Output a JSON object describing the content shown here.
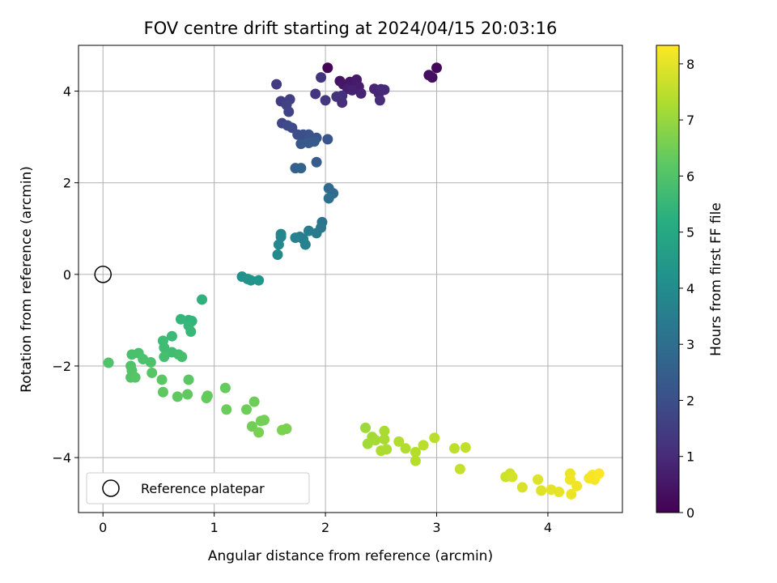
{
  "chart_data": {
    "type": "scatter",
    "title": "FOV centre drift starting at 2024/04/15 20:03:16",
    "xlabel": "Angular distance from reference (arcmin)",
    "ylabel": "Rotation from reference (arcmin)",
    "xlim": [
      -0.22,
      4.67
    ],
    "ylim": [
      -5.2,
      5.0
    ],
    "xticks": [
      0,
      1,
      2,
      3,
      4
    ],
    "yticks": [
      -4,
      -2,
      0,
      2,
      4
    ],
    "xtick_labels": [
      "0",
      "1",
      "2",
      "3",
      "4"
    ],
    "ytick_labels": [
      "−4",
      "−2",
      "0",
      "2",
      "4"
    ],
    "grid": true,
    "colorbar": {
      "label": "Hours from first FF file",
      "colormap": "viridis",
      "range": [
        0,
        8.33
      ],
      "ticks": [
        0,
        1,
        2,
        3,
        4,
        5,
        6,
        7,
        8
      ],
      "tick_labels": [
        "0",
        "1",
        "2",
        "3",
        "4",
        "5",
        "6",
        "7",
        "8"
      ]
    },
    "reference": {
      "name": "Reference platepar",
      "x": 0,
      "y": 0
    },
    "legend": {
      "placement": "lower-left",
      "entries": [
        "Reference platepar"
      ]
    },
    "points": [
      [
        2.02,
        4.51,
        0.1
      ],
      [
        3.0,
        4.51,
        0.2
      ],
      [
        2.93,
        4.35,
        0.3
      ],
      [
        2.96,
        4.3,
        0.35
      ],
      [
        2.13,
        4.22,
        0.4
      ],
      [
        2.16,
        4.15,
        0.5
      ],
      [
        2.22,
        4.2,
        0.55
      ],
      [
        2.28,
        4.25,
        0.6
      ],
      [
        2.3,
        4.1,
        0.65
      ],
      [
        2.2,
        4.05,
        0.7
      ],
      [
        2.24,
        4.02,
        0.75
      ],
      [
        2.32,
        3.95,
        0.8
      ],
      [
        2.44,
        4.05,
        0.85
      ],
      [
        2.48,
        3.95,
        0.9
      ],
      [
        2.5,
        4.04,
        0.95
      ],
      [
        2.53,
        4.03,
        1.0
      ],
      [
        2.49,
        3.8,
        1.05
      ],
      [
        2.15,
        3.75,
        1.1
      ],
      [
        2.15,
        3.9,
        1.15
      ],
      [
        2.1,
        3.88,
        1.2
      ],
      [
        1.96,
        4.3,
        1.25
      ],
      [
        1.91,
        3.94,
        1.3
      ],
      [
        2.0,
        3.8,
        1.35
      ],
      [
        1.56,
        4.15,
        1.45
      ],
      [
        1.6,
        3.78,
        1.5
      ],
      [
        1.68,
        3.82,
        1.55
      ],
      [
        1.65,
        3.7,
        1.6
      ],
      [
        1.67,
        3.55,
        1.65
      ],
      [
        1.61,
        3.3,
        1.75
      ],
      [
        1.66,
        3.25,
        1.85
      ],
      [
        1.7,
        3.2,
        1.9
      ],
      [
        1.75,
        3.05,
        2.0
      ],
      [
        1.8,
        3.05,
        2.05
      ],
      [
        1.85,
        3.05,
        2.1
      ],
      [
        1.92,
        2.98,
        2.15
      ],
      [
        2.02,
        2.95,
        2.2
      ],
      [
        1.78,
        2.85,
        2.25
      ],
      [
        1.85,
        2.87,
        2.3
      ],
      [
        1.9,
        2.9,
        2.35
      ],
      [
        1.92,
        2.45,
        2.45
      ],
      [
        1.73,
        2.32,
        2.5
      ],
      [
        1.78,
        2.32,
        2.6
      ],
      [
        2.03,
        1.88,
        2.85
      ],
      [
        2.07,
        1.77,
        2.9
      ],
      [
        2.03,
        1.66,
        3.0
      ],
      [
        1.97,
        1.14,
        3.2
      ],
      [
        1.96,
        1.02,
        3.3
      ],
      [
        1.92,
        0.9,
        3.4
      ],
      [
        1.85,
        0.95,
        3.45
      ],
      [
        1.77,
        0.82,
        3.55
      ],
      [
        1.8,
        0.77,
        3.6
      ],
      [
        1.73,
        0.8,
        3.65
      ],
      [
        1.82,
        0.65,
        3.7
      ],
      [
        1.6,
        0.88,
        3.8
      ],
      [
        1.6,
        0.82,
        3.85
      ],
      [
        1.58,
        0.65,
        3.9
      ],
      [
        1.57,
        0.43,
        4.0
      ],
      [
        1.25,
        -0.05,
        4.2
      ],
      [
        1.3,
        -0.1,
        4.25
      ],
      [
        1.33,
        -0.13,
        4.3
      ],
      [
        1.4,
        -0.13,
        4.35
      ],
      [
        0.89,
        -0.55,
        5.3
      ],
      [
        0.77,
        -1.0,
        5.4
      ],
      [
        0.8,
        -1.02,
        5.45
      ],
      [
        0.7,
        -0.98,
        5.5
      ],
      [
        0.77,
        -1.12,
        5.55
      ],
      [
        0.79,
        -1.25,
        5.6
      ],
      [
        0.62,
        -1.35,
        5.65
      ],
      [
        0.54,
        -1.45,
        5.7
      ],
      [
        0.55,
        -1.6,
        5.75
      ],
      [
        0.62,
        -1.7,
        5.75
      ],
      [
        0.68,
        -1.75,
        5.8
      ],
      [
        0.71,
        -1.8,
        5.85
      ],
      [
        0.55,
        -1.8,
        5.85
      ],
      [
        0.26,
        -1.75,
        5.9
      ],
      [
        0.32,
        -1.72,
        5.9
      ],
      [
        0.36,
        -1.85,
        5.95
      ],
      [
        0.43,
        -1.92,
        5.95
      ],
      [
        0.05,
        -1.93,
        6.0
      ],
      [
        0.25,
        -2.0,
        6.0
      ],
      [
        0.26,
        -2.1,
        6.05
      ],
      [
        0.25,
        -2.25,
        6.05
      ],
      [
        0.29,
        -2.25,
        6.1
      ],
      [
        0.44,
        -2.15,
        6.1
      ],
      [
        0.53,
        -2.3,
        6.15
      ],
      [
        0.77,
        -2.3,
        6.15
      ],
      [
        0.54,
        -2.57,
        6.2
      ],
      [
        0.67,
        -2.67,
        6.25
      ],
      [
        0.76,
        -2.62,
        6.25
      ],
      [
        0.93,
        -2.7,
        6.3
      ],
      [
        0.94,
        -2.65,
        6.3
      ],
      [
        1.1,
        -2.48,
        6.35
      ],
      [
        1.11,
        -2.95,
        6.4
      ],
      [
        1.29,
        -2.95,
        6.45
      ],
      [
        1.36,
        -2.78,
        6.45
      ],
      [
        1.34,
        -3.32,
        6.5
      ],
      [
        1.42,
        -3.2,
        6.55
      ],
      [
        1.45,
        -3.18,
        6.55
      ],
      [
        1.4,
        -3.45,
        6.6
      ],
      [
        1.61,
        -3.4,
        6.65
      ],
      [
        1.65,
        -3.37,
        6.65
      ],
      [
        2.36,
        -3.35,
        7.1
      ],
      [
        2.38,
        -3.7,
        7.15
      ],
      [
        2.42,
        -3.55,
        7.15
      ],
      [
        2.45,
        -3.62,
        7.2
      ],
      [
        2.53,
        -3.42,
        7.25
      ],
      [
        2.53,
        -3.6,
        7.25
      ],
      [
        2.5,
        -3.85,
        7.3
      ],
      [
        2.55,
        -3.82,
        7.3
      ],
      [
        2.66,
        -3.65,
        7.35
      ],
      [
        2.72,
        -3.8,
        7.35
      ],
      [
        2.81,
        -3.88,
        7.4
      ],
      [
        2.81,
        -4.07,
        7.4
      ],
      [
        2.88,
        -3.73,
        7.45
      ],
      [
        2.98,
        -3.57,
        7.45
      ],
      [
        3.16,
        -3.8,
        7.5
      ],
      [
        3.26,
        -3.78,
        7.55
      ],
      [
        3.21,
        -4.25,
        7.6
      ],
      [
        3.62,
        -4.42,
        7.7
      ],
      [
        3.66,
        -4.35,
        7.75
      ],
      [
        3.68,
        -4.42,
        7.8
      ],
      [
        3.77,
        -4.65,
        7.85
      ],
      [
        3.91,
        -4.48,
        7.9
      ],
      [
        3.94,
        -4.72,
        7.95
      ],
      [
        4.03,
        -4.7,
        8.0
      ],
      [
        4.1,
        -4.75,
        8.05
      ],
      [
        4.21,
        -4.8,
        8.1
      ],
      [
        4.2,
        -4.35,
        8.1
      ],
      [
        4.2,
        -4.48,
        8.15
      ],
      [
        4.26,
        -4.62,
        8.15
      ],
      [
        4.37,
        -4.45,
        8.2
      ],
      [
        4.4,
        -4.38,
        8.25
      ],
      [
        4.42,
        -4.48,
        8.25
      ],
      [
        4.46,
        -4.35,
        8.3
      ]
    ]
  }
}
